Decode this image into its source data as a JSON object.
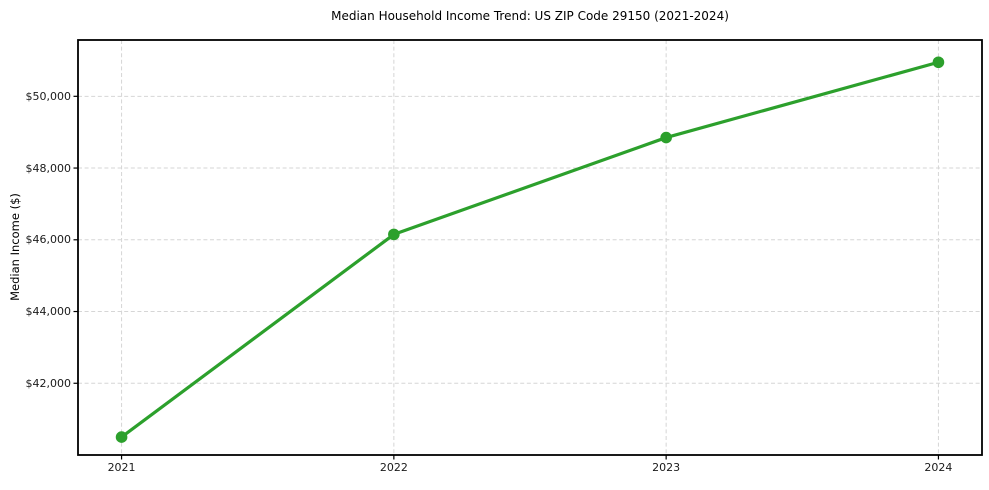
{
  "chart_data": {
    "type": "line",
    "title": "Median Household Income Trend: US ZIP Code 29150 (2021-2024)",
    "xlabel": "",
    "ylabel": "Median Income ($)",
    "categories": [
      "2021",
      "2022",
      "2023",
      "2024"
    ],
    "x_numeric": [
      2021,
      2022,
      2023,
      2024
    ],
    "values": [
      40500,
      46150,
      48850,
      50950
    ],
    "y_ticks": [
      42000,
      44000,
      46000,
      48000,
      50000
    ],
    "y_tick_labels": [
      "$42,000",
      "$44,000",
      "$46,000",
      "$48,000",
      "$50,000"
    ],
    "xlim": [
      2020.84,
      2024.16
    ],
    "ylim": [
      40000,
      51570
    ],
    "grid": true,
    "grid_style": "dashed",
    "legend_position": "none"
  },
  "style": {
    "line_color": "#2ca02c",
    "marker_color": "#2ca02c",
    "grid_color": "#d6d6d6",
    "spine_color": "#000000",
    "tick_color": "#000000",
    "text_color": "#1a1a1a",
    "background_color": "#ffffff"
  }
}
